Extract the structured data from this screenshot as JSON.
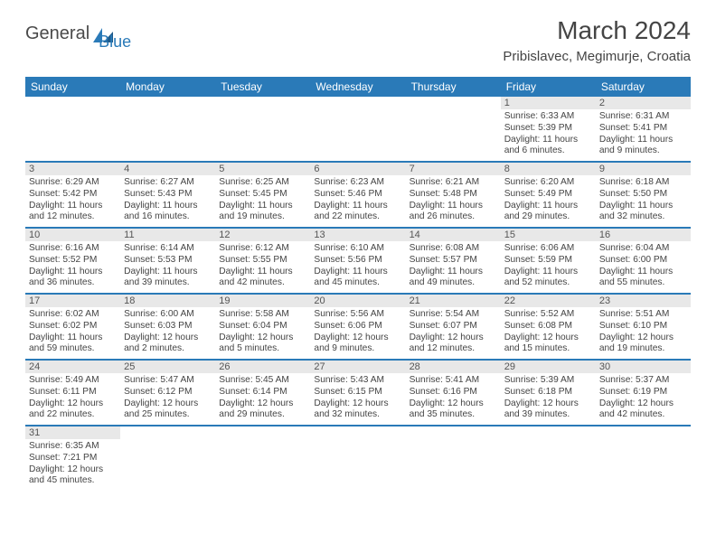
{
  "logo": {
    "part1": "General",
    "part2": "Blue"
  },
  "title": "March 2024",
  "location": "Pribislavec, Megimurje, Croatia",
  "weekdays": [
    "Sunday",
    "Monday",
    "Tuesday",
    "Wednesday",
    "Thursday",
    "Friday",
    "Saturday"
  ],
  "colors": {
    "header_bar": "#2a7ab8",
    "daynum_bg": "#e8e8e8",
    "row_border": "#2a7ab8",
    "text": "#444444",
    "logo_gray": "#4a4a4a",
    "logo_blue": "#2a7ab8"
  },
  "weeks": [
    [
      {
        "n": "",
        "empty": true
      },
      {
        "n": "",
        "empty": true
      },
      {
        "n": "",
        "empty": true
      },
      {
        "n": "",
        "empty": true
      },
      {
        "n": "",
        "empty": true
      },
      {
        "n": "1",
        "sunrise": "6:33 AM",
        "sunset": "5:39 PM",
        "daylight": "11 hours and 6 minutes."
      },
      {
        "n": "2",
        "sunrise": "6:31 AM",
        "sunset": "5:41 PM",
        "daylight": "11 hours and 9 minutes."
      }
    ],
    [
      {
        "n": "3",
        "sunrise": "6:29 AM",
        "sunset": "5:42 PM",
        "daylight": "11 hours and 12 minutes."
      },
      {
        "n": "4",
        "sunrise": "6:27 AM",
        "sunset": "5:43 PM",
        "daylight": "11 hours and 16 minutes."
      },
      {
        "n": "5",
        "sunrise": "6:25 AM",
        "sunset": "5:45 PM",
        "daylight": "11 hours and 19 minutes."
      },
      {
        "n": "6",
        "sunrise": "6:23 AM",
        "sunset": "5:46 PM",
        "daylight": "11 hours and 22 minutes."
      },
      {
        "n": "7",
        "sunrise": "6:21 AM",
        "sunset": "5:48 PM",
        "daylight": "11 hours and 26 minutes."
      },
      {
        "n": "8",
        "sunrise": "6:20 AM",
        "sunset": "5:49 PM",
        "daylight": "11 hours and 29 minutes."
      },
      {
        "n": "9",
        "sunrise": "6:18 AM",
        "sunset": "5:50 PM",
        "daylight": "11 hours and 32 minutes."
      }
    ],
    [
      {
        "n": "10",
        "sunrise": "6:16 AM",
        "sunset": "5:52 PM",
        "daylight": "11 hours and 36 minutes."
      },
      {
        "n": "11",
        "sunrise": "6:14 AM",
        "sunset": "5:53 PM",
        "daylight": "11 hours and 39 minutes."
      },
      {
        "n": "12",
        "sunrise": "6:12 AM",
        "sunset": "5:55 PM",
        "daylight": "11 hours and 42 minutes."
      },
      {
        "n": "13",
        "sunrise": "6:10 AM",
        "sunset": "5:56 PM",
        "daylight": "11 hours and 45 minutes."
      },
      {
        "n": "14",
        "sunrise": "6:08 AM",
        "sunset": "5:57 PM",
        "daylight": "11 hours and 49 minutes."
      },
      {
        "n": "15",
        "sunrise": "6:06 AM",
        "sunset": "5:59 PM",
        "daylight": "11 hours and 52 minutes."
      },
      {
        "n": "16",
        "sunrise": "6:04 AM",
        "sunset": "6:00 PM",
        "daylight": "11 hours and 55 minutes."
      }
    ],
    [
      {
        "n": "17",
        "sunrise": "6:02 AM",
        "sunset": "6:02 PM",
        "daylight": "11 hours and 59 minutes."
      },
      {
        "n": "18",
        "sunrise": "6:00 AM",
        "sunset": "6:03 PM",
        "daylight": "12 hours and 2 minutes."
      },
      {
        "n": "19",
        "sunrise": "5:58 AM",
        "sunset": "6:04 PM",
        "daylight": "12 hours and 5 minutes."
      },
      {
        "n": "20",
        "sunrise": "5:56 AM",
        "sunset": "6:06 PM",
        "daylight": "12 hours and 9 minutes."
      },
      {
        "n": "21",
        "sunrise": "5:54 AM",
        "sunset": "6:07 PM",
        "daylight": "12 hours and 12 minutes."
      },
      {
        "n": "22",
        "sunrise": "5:52 AM",
        "sunset": "6:08 PM",
        "daylight": "12 hours and 15 minutes."
      },
      {
        "n": "23",
        "sunrise": "5:51 AM",
        "sunset": "6:10 PM",
        "daylight": "12 hours and 19 minutes."
      }
    ],
    [
      {
        "n": "24",
        "sunrise": "5:49 AM",
        "sunset": "6:11 PM",
        "daylight": "12 hours and 22 minutes."
      },
      {
        "n": "25",
        "sunrise": "5:47 AM",
        "sunset": "6:12 PM",
        "daylight": "12 hours and 25 minutes."
      },
      {
        "n": "26",
        "sunrise": "5:45 AM",
        "sunset": "6:14 PM",
        "daylight": "12 hours and 29 minutes."
      },
      {
        "n": "27",
        "sunrise": "5:43 AM",
        "sunset": "6:15 PM",
        "daylight": "12 hours and 32 minutes."
      },
      {
        "n": "28",
        "sunrise": "5:41 AM",
        "sunset": "6:16 PM",
        "daylight": "12 hours and 35 minutes."
      },
      {
        "n": "29",
        "sunrise": "5:39 AM",
        "sunset": "6:18 PM",
        "daylight": "12 hours and 39 minutes."
      },
      {
        "n": "30",
        "sunrise": "5:37 AM",
        "sunset": "6:19 PM",
        "daylight": "12 hours and 42 minutes."
      }
    ],
    [
      {
        "n": "31",
        "sunrise": "6:35 AM",
        "sunset": "7:21 PM",
        "daylight": "12 hours and 45 minutes."
      },
      {
        "n": "",
        "empty": true
      },
      {
        "n": "",
        "empty": true
      },
      {
        "n": "",
        "empty": true
      },
      {
        "n": "",
        "empty": true
      },
      {
        "n": "",
        "empty": true
      },
      {
        "n": "",
        "empty": true
      }
    ]
  ]
}
